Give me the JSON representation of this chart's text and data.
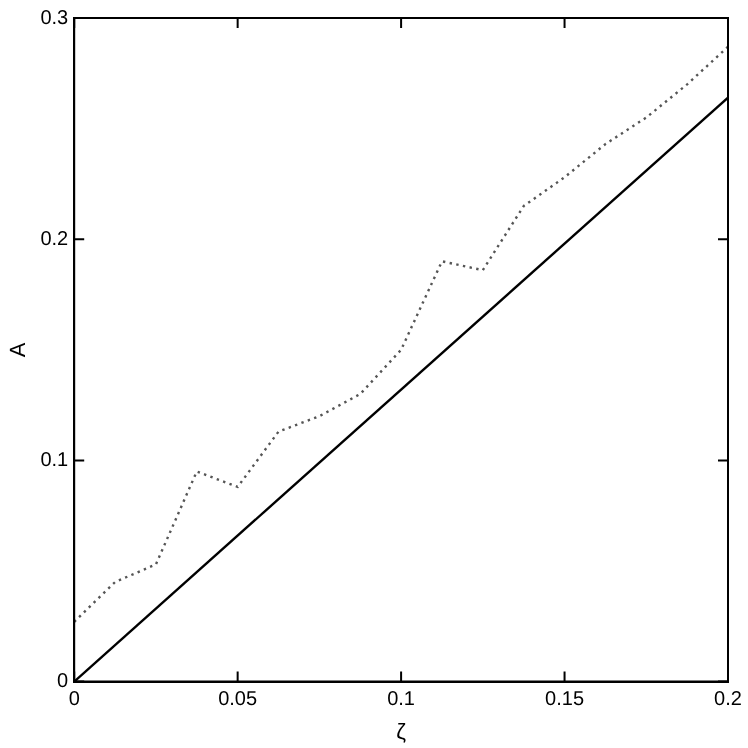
{
  "chart_data": {
    "type": "line",
    "xlabel": "ζ",
    "ylabel": "A",
    "xlim": [
      0,
      0.2
    ],
    "ylim": [
      0,
      0.3
    ],
    "xticks": [
      0,
      0.05,
      0.1,
      0.15,
      0.2
    ],
    "yticks": [
      0,
      0.1,
      0.2,
      0.3
    ],
    "grid": false,
    "legend": false,
    "marker": "none",
    "series": [
      {
        "color": "#000000",
        "line_style": "solid",
        "x": [
          0,
          0.2
        ],
        "values": [
          0,
          0.264
        ]
      },
      {
        "color": "#555555",
        "line_style": "dotted",
        "x": [
          0,
          0.0125,
          0.025,
          0.0375,
          0.05,
          0.0625,
          0.075,
          0.0875,
          0.1,
          0.1125,
          0.125,
          0.1375,
          0.15,
          0.1625,
          0.175,
          0.1875,
          0.2
        ],
        "values": [
          0.027,
          0.045,
          0.053,
          0.095,
          0.088,
          0.113,
          0.12,
          0.13,
          0.15,
          0.19,
          0.186,
          0.215,
          0.228,
          0.243,
          0.255,
          0.27,
          0.287
        ]
      }
    ]
  }
}
